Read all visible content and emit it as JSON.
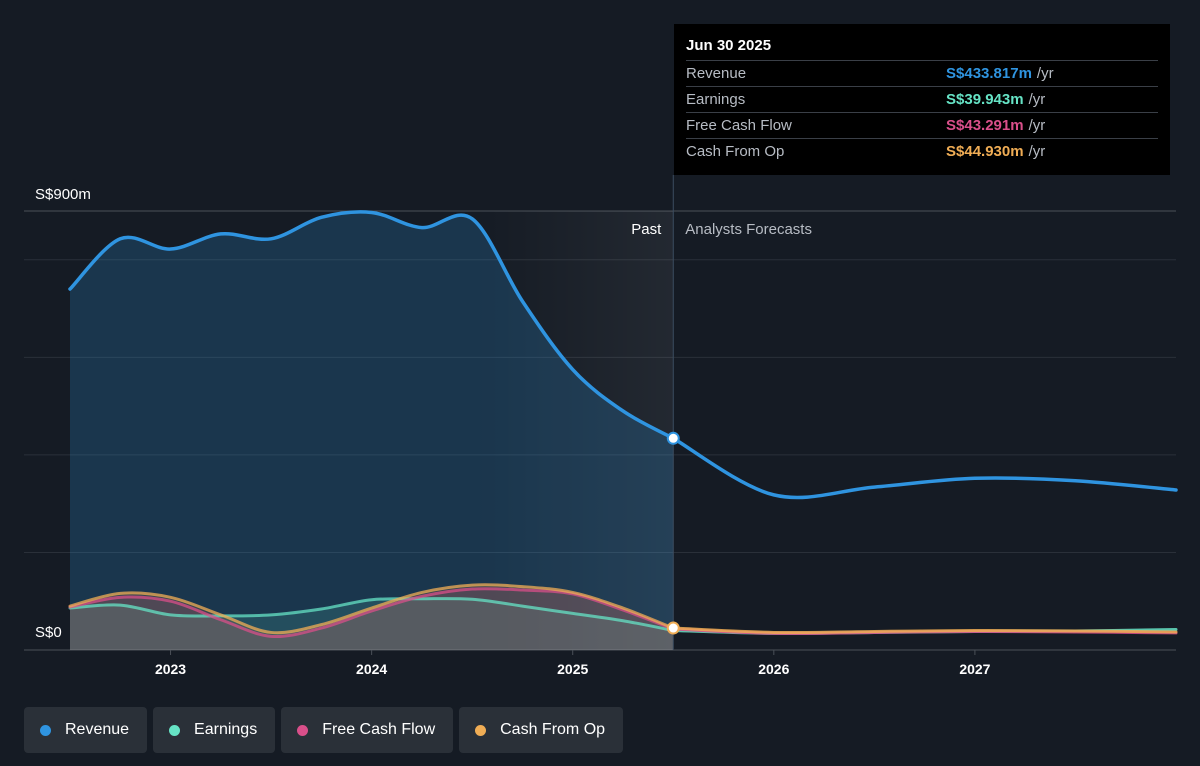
{
  "colors": {
    "revenue": "#2f94e0",
    "earnings": "#66e3c5",
    "free_cash_flow": "#d94f8a",
    "cash_from_op": "#f0ad55",
    "background": "#151b24"
  },
  "tooltip": {
    "date": "Jun 30 2025",
    "rows": [
      {
        "label": "Revenue",
        "value": "S$433.817m",
        "unit": "/yr"
      },
      {
        "label": "Earnings",
        "value": "S$39.943m",
        "unit": "/yr"
      },
      {
        "label": "Free Cash Flow",
        "value": "S$43.291m",
        "unit": "/yr"
      },
      {
        "label": "Cash From Op",
        "value": "S$44.930m",
        "unit": "/yr"
      }
    ]
  },
  "legend": [
    {
      "label": "Revenue",
      "icon": "dot-icon"
    },
    {
      "label": "Earnings",
      "icon": "dot-icon"
    },
    {
      "label": "Free Cash Flow",
      "icon": "dot-icon"
    },
    {
      "label": "Cash From Op",
      "icon": "dot-icon"
    }
  ],
  "chart_data": {
    "type": "line",
    "y_max_label": "S$900m",
    "y_min_label": "S$0",
    "ylim": [
      0,
      900
    ],
    "xlim": [
      2022.5,
      2028.0
    ],
    "x_ticks": [
      2023,
      2024,
      2025,
      2026,
      2027
    ],
    "past_label": "Past",
    "forecast_label": "Analysts Forecasts",
    "divider_x": 2025.5,
    "series": [
      {
        "name": "Revenue",
        "x": [
          2022.5,
          2022.75,
          2023.0,
          2023.25,
          2023.5,
          2023.75,
          2024.0,
          2024.25,
          2024.5,
          2024.75,
          2025.0,
          2025.25,
          2025.5,
          2026.0,
          2026.5,
          2027.0,
          2027.5,
          2028.0
        ],
        "y": [
          740,
          843,
          822,
          853,
          843,
          887,
          897,
          866,
          884,
          715,
          575,
          490,
          434,
          318,
          334,
          352,
          347,
          328
        ]
      },
      {
        "name": "Earnings",
        "x": [
          2022.5,
          2022.75,
          2023.0,
          2023.25,
          2023.5,
          2023.75,
          2024.0,
          2024.25,
          2024.5,
          2024.75,
          2025.0,
          2025.25,
          2025.5,
          2026.0,
          2026.5,
          2027.0,
          2027.5,
          2028.0
        ],
        "y": [
          86,
          92,
          72,
          70,
          72,
          84,
          103,
          105,
          104,
          90,
          75,
          60,
          40,
          34,
          36,
          38,
          39,
          42
        ]
      },
      {
        "name": "Free Cash Flow",
        "x": [
          2022.5,
          2022.75,
          2023.0,
          2023.25,
          2023.5,
          2023.75,
          2024.0,
          2024.25,
          2024.5,
          2024.75,
          2025.0,
          2025.25,
          2025.5,
          2026.0,
          2026.5,
          2027.0,
          2027.5,
          2028.0
        ],
        "y": [
          88,
          108,
          100,
          62,
          28,
          45,
          80,
          110,
          125,
          123,
          115,
          82,
          43,
          34,
          36,
          38,
          37,
          35
        ]
      },
      {
        "name": "Cash From Op",
        "x": [
          2022.5,
          2022.75,
          2023.0,
          2023.25,
          2023.5,
          2023.75,
          2024.0,
          2024.25,
          2024.5,
          2024.75,
          2025.0,
          2025.25,
          2025.5,
          2026.0,
          2026.5,
          2027.0,
          2027.5,
          2028.0
        ],
        "y": [
          90,
          116,
          108,
          72,
          36,
          52,
          86,
          118,
          133,
          130,
          118,
          86,
          45,
          36,
          38,
          40,
          39,
          37
        ]
      }
    ]
  }
}
